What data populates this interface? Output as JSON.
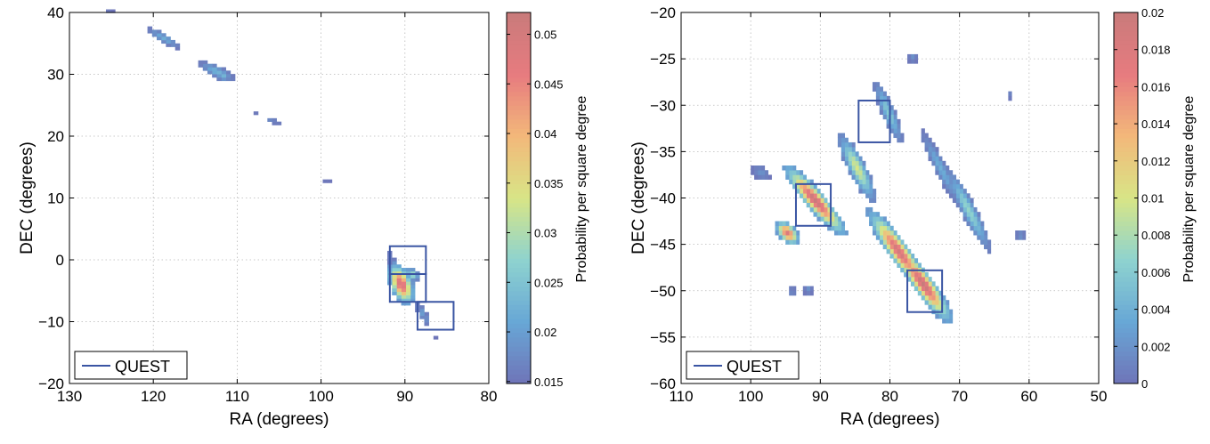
{
  "colors": {
    "quest_box": "#3a55a3",
    "colormap": [
      "#6f74b8",
      "#68a7d6",
      "#8ed3cf",
      "#d8e586",
      "#f3b87a",
      "#e77b7f",
      "#c97b7b"
    ]
  },
  "chart_data": [
    {
      "type": "heatmap",
      "title": "",
      "xlabel": "RA (degrees)",
      "ylabel": "DEC (degrees)",
      "xlim": [
        130,
        80
      ],
      "ylim": [
        -20,
        40
      ],
      "x_reversed": true,
      "xticks": [
        130,
        120,
        110,
        100,
        90,
        80
      ],
      "yticks": [
        -20,
        -10,
        0,
        10,
        20,
        30,
        40
      ],
      "grid": true,
      "legend": {
        "entries": [
          "QUEST"
        ],
        "placement": "bottom-left"
      },
      "colorbar": {
        "label": "Probability per square degree",
        "range": [
          0.0148,
          0.0522
        ],
        "ticks": [
          "0.015",
          "0.02",
          "0.025",
          "0.03",
          "0.035",
          "0.04",
          "0.045",
          "0.05"
        ]
      },
      "quest_boxes": [
        {
          "ra": [
            91.8,
            87.5
          ],
          "dec": [
            -2.3,
            2.2
          ]
        },
        {
          "ra": [
            91.8,
            87.5
          ],
          "dec": [
            -6.8,
            -2.3
          ]
        },
        {
          "ra": [
            88.5,
            84.2
          ],
          "dec": [
            -11.3,
            -6.8
          ]
        }
      ],
      "clusters": [
        {
          "ra": 125,
          "dec": 39.8,
          "peak": 0.016,
          "len": 0.5,
          "wid": 0.4,
          "ang": 0
        },
        {
          "ra": 118.5,
          "dec": 35.6,
          "peak": 0.022,
          "len": 2.6,
          "wid": 0.7,
          "ang": 40
        },
        {
          "ra": 112.2,
          "dec": 30.2,
          "peak": 0.023,
          "len": 2.6,
          "wid": 0.9,
          "ang": 35
        },
        {
          "ra": 111.5,
          "dec": 29.3,
          "peak": 0.028,
          "len": 0.6,
          "wid": 0.5,
          "ang": 0
        },
        {
          "ra": 107.5,
          "dec": 23.6,
          "peak": 0.016,
          "len": 0.6,
          "wid": 0.3,
          "ang": 0
        },
        {
          "ra": 105.5,
          "dec": 22.2,
          "peak": 0.018,
          "len": 1.2,
          "wid": 0.4,
          "ang": 30
        },
        {
          "ra": 99,
          "dec": 12.5,
          "peak": 0.016,
          "len": 0.4,
          "wid": 0.4,
          "ang": 0
        },
        {
          "ra": 91.2,
          "dec": -0.6,
          "peak": 0.018,
          "len": 2.0,
          "wid": 0.4,
          "ang": 80
        },
        {
          "ra": 90.2,
          "dec": -4.2,
          "peak": 0.05,
          "len": 3.6,
          "wid": 1.4,
          "ang": 75
        },
        {
          "ra": 88.9,
          "dec": -2.6,
          "peak": 0.03,
          "len": 1.2,
          "wid": 0.8,
          "ang": 60
        },
        {
          "ra": 89.6,
          "dec": -6.3,
          "peak": 0.028,
          "len": 1.4,
          "wid": 0.8,
          "ang": 70
        },
        {
          "ra": 87.6,
          "dec": -9.0,
          "peak": 0.02,
          "len": 2.2,
          "wid": 0.5,
          "ang": 70
        },
        {
          "ra": 86.0,
          "dec": -12.6,
          "peak": 0.016,
          "len": 0.3,
          "wid": 0.3,
          "ang": 0
        }
      ]
    },
    {
      "type": "heatmap",
      "title": "",
      "xlabel": "RA (degrees)",
      "ylabel": "DEC (degrees)",
      "xlim": [
        110,
        50
      ],
      "ylim": [
        -60,
        -20
      ],
      "x_reversed": true,
      "xticks": [
        110,
        100,
        90,
        80,
        70,
        60,
        50
      ],
      "yticks": [
        -60,
        -55,
        -50,
        -45,
        -40,
        -35,
        -30,
        -25,
        -20
      ],
      "grid": true,
      "legend": {
        "entries": [
          "QUEST"
        ],
        "placement": "bottom-left"
      },
      "colorbar": {
        "label": "Probability per square degree",
        "range": [
          0,
          0.02
        ],
        "ticks": [
          "0",
          "0.002",
          "0.004",
          "0.006",
          "0.008",
          "0.01",
          "0.012",
          "0.014",
          "0.016",
          "0.018",
          "0.02"
        ]
      },
      "quest_boxes": [
        {
          "ra": [
            84.5,
            80
          ],
          "dec": [
            -34,
            -29.5
          ]
        },
        {
          "ra": [
            93.5,
            88.5
          ],
          "dec": [
            -43,
            -38.5
          ]
        },
        {
          "ra": [
            77.5,
            72.5
          ],
          "dec": [
            -52.3,
            -47.8
          ]
        }
      ],
      "clusters": [
        {
          "ra": 98.3,
          "dec": -37.5,
          "peak": 0.002,
          "len": 1.4,
          "wid": 0.8,
          "ang": 20
        },
        {
          "ra": 76.5,
          "dec": -25.1,
          "peak": 0.002,
          "len": 0.7,
          "wid": 0.6,
          "ang": 0
        },
        {
          "ra": 62.5,
          "dec": -29.2,
          "peak": 0.002,
          "len": 0.35,
          "wid": 0.35,
          "ang": 0
        },
        {
          "ra": 61.0,
          "dec": -44.3,
          "peak": 0.002,
          "len": 0.8,
          "wid": 0.7,
          "ang": 0
        },
        {
          "ra": 90.5,
          "dec": -40.5,
          "peak": 0.02,
          "len": 6.0,
          "wid": 1.3,
          "ang": 40
        },
        {
          "ra": 84.5,
          "dec": -37.0,
          "peak": 0.01,
          "len": 4.5,
          "wid": 1.2,
          "ang": 55
        },
        {
          "ra": 80.0,
          "dec": -31.0,
          "peak": 0.006,
          "len": 4.0,
          "wid": 0.9,
          "ang": 60
        },
        {
          "ra": 94.5,
          "dec": -44.0,
          "peak": 0.018,
          "len": 2.0,
          "wid": 1.1,
          "ang": 30
        },
        {
          "ra": 78.5,
          "dec": -46.0,
          "peak": 0.019,
          "len": 6.5,
          "wid": 1.4,
          "ang": 45
        },
        {
          "ra": 72.5,
          "dec": -37.0,
          "peak": 0.004,
          "len": 5.0,
          "wid": 0.8,
          "ang": 55
        },
        {
          "ra": 75.0,
          "dec": -49.5,
          "peak": 0.02,
          "len": 6.0,
          "wid": 1.4,
          "ang": 45
        },
        {
          "ra": 68.5,
          "dec": -41.5,
          "peak": 0.007,
          "len": 5.5,
          "wid": 1.0,
          "ang": 55
        },
        {
          "ra": 93.8,
          "dec": -50.3,
          "peak": 0.002,
          "len": 0.6,
          "wid": 0.5,
          "ang": 0
        },
        {
          "ra": 91.5,
          "dec": -50.1,
          "peak": 0.002,
          "len": 0.7,
          "wid": 0.6,
          "ang": 0
        }
      ]
    }
  ]
}
